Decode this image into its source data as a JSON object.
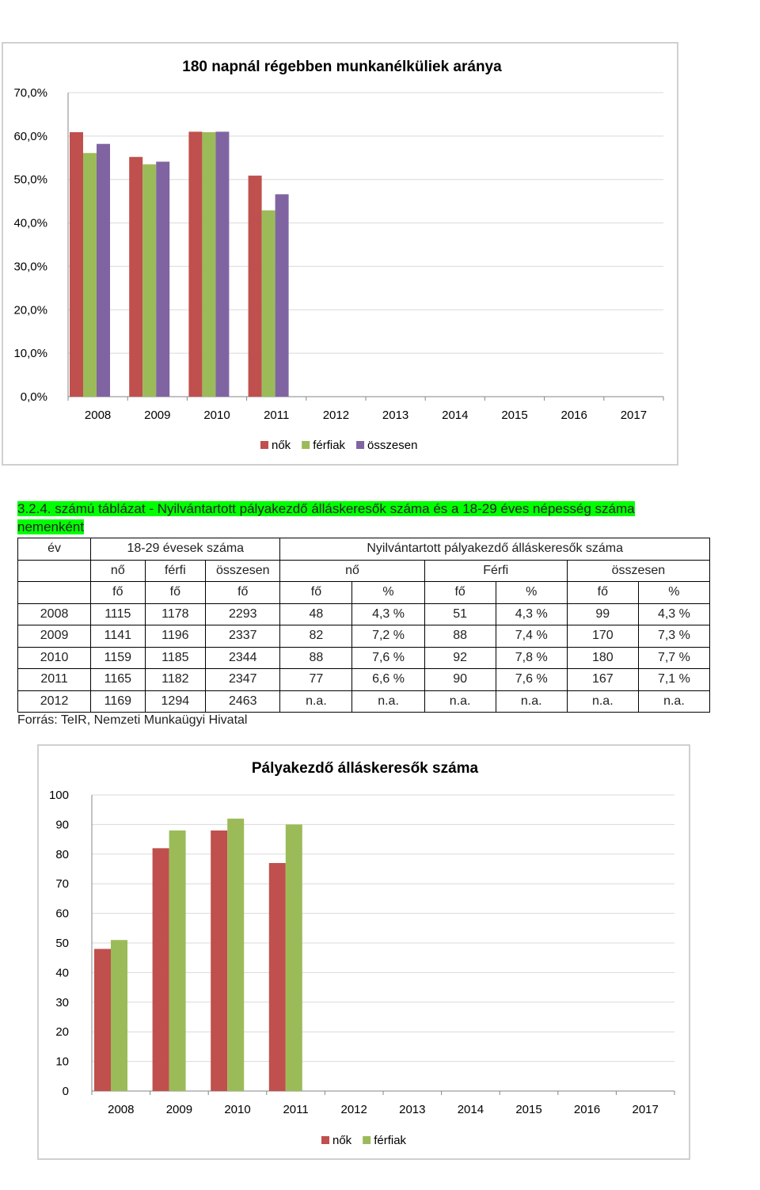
{
  "caption": "3.2.4. számú táblázat - Nyilvántartott pályakezdő álláskeresők száma és a 18-29 éves népesség száma nemenként",
  "table": {
    "head1": [
      "év",
      "18-29 évesek száma",
      "Nyilvántartott pályakezdő álláskeresők száma"
    ],
    "head2": [
      "nő",
      "férfi",
      "összesen",
      "nő",
      "Férfi",
      "összesen"
    ],
    "head3": [
      "fő",
      "fő",
      "fő",
      "fő",
      "%",
      "fő",
      "%",
      "fő",
      "%"
    ],
    "rows": [
      [
        "2008",
        "1115",
        "1178",
        "2293",
        "48",
        "4,3 %",
        "51",
        "4,3 %",
        "99",
        "4,3 %"
      ],
      [
        "2009",
        "1141",
        "1196",
        "2337",
        "82",
        "7,2 %",
        "88",
        "7,4 %",
        "170",
        "7,3 %"
      ],
      [
        "2010",
        "1159",
        "1185",
        "2344",
        "88",
        "7,6 %",
        "92",
        "7,8 %",
        "180",
        "7,7 %"
      ],
      [
        "2011",
        "1165",
        "1182",
        "2347",
        "77",
        "6,6 %",
        "90",
        "7,6 %",
        "167",
        "7,1 %"
      ],
      [
        "2012",
        "1169",
        "1294",
        "2463",
        "n.a.",
        "n.a.",
        "n.a.",
        "n.a.",
        "n.a.",
        "n.a."
      ]
    ]
  },
  "source": "Forrás: TeIR, Nemzeti Munkaügyi Hivatal",
  "colors": {
    "nok": "#c0504d",
    "ferfiak": "#9bbb59",
    "osszesen": "#8064a2",
    "grid": "#d9d9d9",
    "axis": "#868686"
  },
  "chart_data": [
    {
      "type": "bar",
      "title": "180 napnál régebben munkanélküliek aránya",
      "categories": [
        "2008",
        "2009",
        "2010",
        "2011",
        "2012",
        "2013",
        "2014",
        "2015",
        "2016",
        "2017"
      ],
      "series": [
        {
          "name": "nők",
          "values": [
            60.9,
            55.2,
            61.0,
            50.9,
            null,
            null,
            null,
            null,
            null,
            null
          ]
        },
        {
          "name": "férfiak",
          "values": [
            56.1,
            53.5,
            60.9,
            42.9,
            null,
            null,
            null,
            null,
            null,
            null
          ]
        },
        {
          "name": "összesen",
          "values": [
            58.2,
            54.1,
            61.0,
            46.6,
            null,
            null,
            null,
            null,
            null,
            null
          ]
        }
      ],
      "ylim": [
        0,
        70
      ],
      "yticks": [
        0,
        10,
        20,
        30,
        40,
        50,
        60,
        70
      ],
      "ytick_labels": [
        "0,0%",
        "10,0%",
        "20,0%",
        "30,0%",
        "40,0%",
        "50,0%",
        "60,0%",
        "70,0%"
      ],
      "xlabel": "",
      "ylabel": "",
      "grid": true,
      "legend": "bottom"
    },
    {
      "type": "bar",
      "title": "Pályakezdő álláskeresők száma",
      "categories": [
        "2008",
        "2009",
        "2010",
        "2011",
        "2012",
        "2013",
        "2014",
        "2015",
        "2016",
        "2017"
      ],
      "series": [
        {
          "name": "nők",
          "values": [
            48,
            82,
            88,
            77,
            null,
            null,
            null,
            null,
            null,
            null
          ]
        },
        {
          "name": "férfiak",
          "values": [
            51,
            88,
            92,
            90,
            null,
            null,
            null,
            null,
            null,
            null
          ]
        }
      ],
      "ylim": [
        0,
        100
      ],
      "yticks": [
        0,
        10,
        20,
        30,
        40,
        50,
        60,
        70,
        80,
        90,
        100
      ],
      "ytick_labels": [
        "0",
        "10",
        "20",
        "30",
        "40",
        "50",
        "60",
        "70",
        "80",
        "90",
        "100"
      ],
      "xlabel": "",
      "ylabel": "",
      "grid": true,
      "legend": "bottom"
    }
  ]
}
